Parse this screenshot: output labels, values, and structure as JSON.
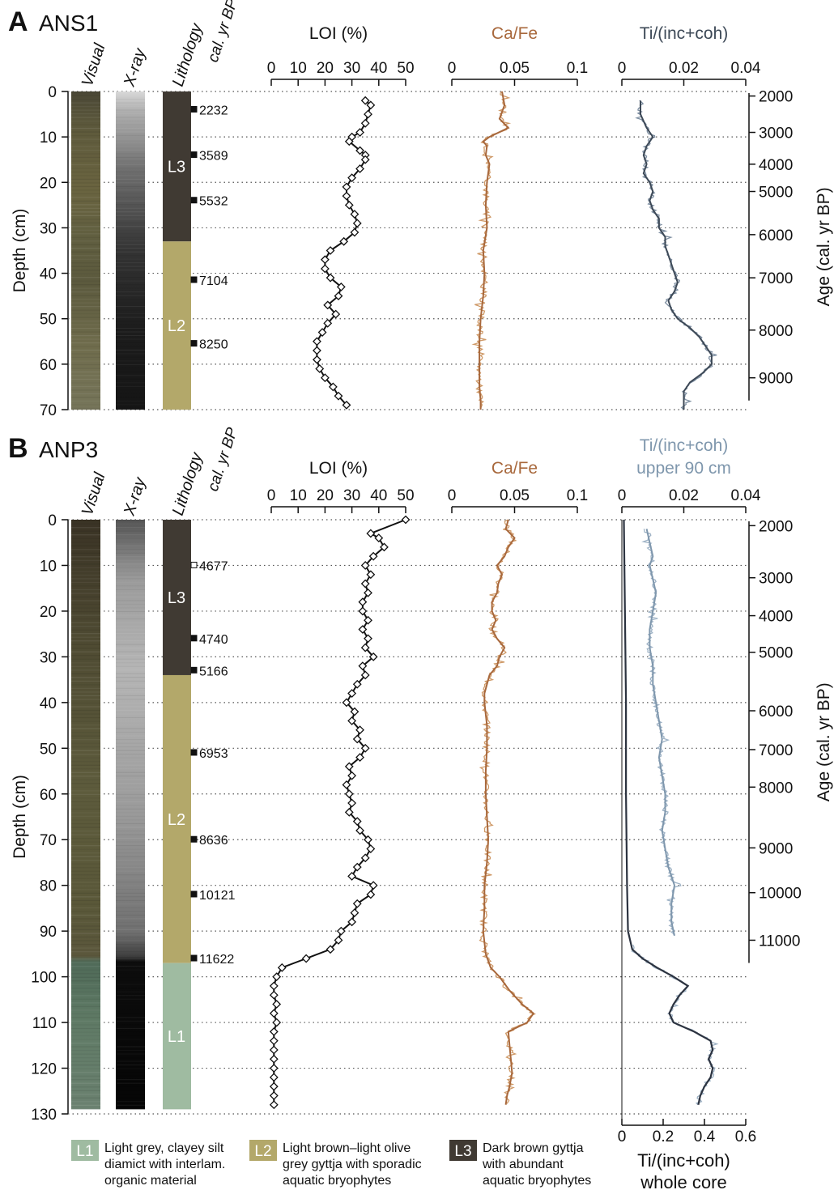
{
  "colors": {
    "L1": "#9fbba1",
    "L2": "#b3a86a",
    "L3": "#403a33",
    "loi": "#111111",
    "cafe": "#a8683c",
    "cafe_raw": "#cf9a68",
    "ti_ans1": "#3d4957",
    "ti_ans1_raw": "#7d8ea1",
    "ti_anp3": "#7f97ad",
    "ti_anp3_raw": "#9fb3c6",
    "ti_whole": "#2c3340",
    "grid": "#555555"
  },
  "legend": [
    {
      "code": "L1",
      "text": [
        "Light grey, clayey silt",
        "diamict with interlam.",
        "organic material"
      ]
    },
    {
      "code": "L2",
      "text": [
        "Light brown–light olive",
        "grey gyttja with sporadic",
        "aquatic bryophytes"
      ]
    },
    {
      "code": "L3",
      "text": [
        "Dark brown gyttja",
        "with abundant",
        "aquatic bryophytes"
      ]
    }
  ],
  "chart_data": [
    {
      "type": "line",
      "panel": "A",
      "core": "ANS1",
      "strip_labels": [
        "Visual",
        "X-ray",
        "Lithology"
      ],
      "ages_label": "cal. yr BP",
      "ylabel": "Depth (cm)",
      "depth_ticks": [
        0,
        10,
        20,
        30,
        40,
        50,
        60,
        70
      ],
      "ylim": [
        0,
        70
      ],
      "lithology": [
        {
          "unit": "L3",
          "from": 0,
          "to": 33
        },
        {
          "unit": "L2",
          "from": 33,
          "to": 70
        }
      ],
      "dates": [
        {
          "depth": 4,
          "age": "2232",
          "filled": true
        },
        {
          "depth": 14,
          "age": "3589",
          "filled": true
        },
        {
          "depth": 24,
          "age": "5532",
          "filled": true
        },
        {
          "depth": 41.5,
          "age": "7104",
          "filled": true
        },
        {
          "depth": 55.5,
          "age": "8250",
          "filled": true
        }
      ],
      "loi": {
        "xlabel": "LOI (%)",
        "ticks": [
          0,
          10,
          20,
          30,
          40,
          50
        ],
        "xlim": [
          0,
          50
        ],
        "depth": [
          2,
          3,
          5,
          7,
          9,
          10,
          11,
          13,
          14,
          15,
          17,
          19,
          21,
          23,
          25,
          27,
          29,
          31,
          33,
          35,
          37,
          39,
          41,
          43,
          45,
          47,
          49,
          51,
          53,
          55,
          57,
          59,
          61,
          63,
          65,
          67,
          69
        ],
        "values": [
          35,
          37,
          36,
          35,
          33,
          30,
          29,
          33,
          35,
          35,
          33,
          30,
          28,
          28,
          29,
          31,
          32,
          31,
          27,
          22,
          20,
          20,
          22,
          26,
          25,
          21,
          24,
          21,
          19,
          17,
          17,
          17,
          18,
          20,
          23,
          25,
          28
        ]
      },
      "cafe": {
        "xlabel": "Ca/Fe",
        "ticks": [
          0,
          0.05,
          0.1
        ],
        "xlim": [
          0,
          0.1
        ],
        "depth": [
          0,
          3,
          6,
          8,
          10,
          11,
          12,
          14,
          16,
          20,
          25,
          30,
          35,
          40,
          45,
          50,
          55,
          60,
          65,
          68,
          70
        ],
        "values": [
          0.04,
          0.042,
          0.038,
          0.045,
          0.03,
          0.025,
          0.028,
          0.027,
          0.03,
          0.028,
          0.027,
          0.028,
          0.025,
          0.026,
          0.025,
          0.023,
          0.022,
          0.022,
          0.022,
          0.023,
          0.023
        ]
      },
      "ti": {
        "xlabel": "Ti/(inc+coh)",
        "ticks": [
          0,
          0.02,
          0.04
        ],
        "xlim": [
          0,
          0.04
        ],
        "depth": [
          2,
          5,
          8,
          10,
          12,
          14,
          16,
          18,
          20,
          22,
          24,
          26,
          28,
          30,
          32,
          34,
          36,
          38,
          40,
          42,
          44,
          46,
          48,
          50,
          52,
          54,
          56,
          58,
          60,
          62,
          64,
          66,
          68,
          70
        ],
        "values": [
          0.006,
          0.006,
          0.008,
          0.01,
          0.008,
          0.007,
          0.008,
          0.007,
          0.009,
          0.01,
          0.009,
          0.01,
          0.012,
          0.012,
          0.014,
          0.014,
          0.015,
          0.016,
          0.017,
          0.018,
          0.017,
          0.015,
          0.016,
          0.018,
          0.022,
          0.025,
          0.027,
          0.029,
          0.029,
          0.026,
          0.022,
          0.02,
          0.02,
          0.02
        ]
      },
      "age_axis": {
        "label": "Age (cal. yr BP)",
        "ticks": [
          {
            "depth": 1,
            "age": 2000
          },
          {
            "depth": 9,
            "age": 3000
          },
          {
            "depth": 16,
            "age": 4000
          },
          {
            "depth": 22,
            "age": 5000
          },
          {
            "depth": 31.5,
            "age": 6000
          },
          {
            "depth": 41,
            "age": 7000
          },
          {
            "depth": 52.5,
            "age": 8000
          },
          {
            "depth": 63,
            "age": 9000
          }
        ]
      }
    },
    {
      "type": "line",
      "panel": "B",
      "core": "ANP3",
      "strip_labels": [
        "Visual",
        "X-ray",
        "Lithology"
      ],
      "ages_label": "cal. yr BP",
      "ylabel": "Depth (cm)",
      "depth_ticks": [
        0,
        10,
        20,
        30,
        40,
        50,
        60,
        70,
        80,
        90,
        100,
        110,
        120,
        130
      ],
      "ylim": [
        0,
        130
      ],
      "lithology": [
        {
          "unit": "L3",
          "from": 0,
          "to": 34
        },
        {
          "unit": "L2",
          "from": 34,
          "to": 97
        },
        {
          "unit": "L1",
          "from": 97,
          "to": 129
        }
      ],
      "dates": [
        {
          "depth": 10,
          "age": "4677",
          "filled": false
        },
        {
          "depth": 26,
          "age": "4740",
          "filled": true
        },
        {
          "depth": 33,
          "age": "5166",
          "filled": true
        },
        {
          "depth": 51,
          "age": "6953",
          "filled": true
        },
        {
          "depth": 70,
          "age": "8636",
          "filled": true
        },
        {
          "depth": 82,
          "age": "10121",
          "filled": true
        },
        {
          "depth": 96,
          "age": "11622",
          "filled": true
        }
      ],
      "loi": {
        "xlabel": "LOI (%)",
        "ticks": [
          0,
          10,
          20,
          30,
          40,
          50
        ],
        "xlim": [
          0,
          50
        ],
        "depth": [
          0,
          3,
          4,
          6,
          8,
          10,
          12,
          14,
          16,
          18,
          20,
          22,
          24,
          26,
          28,
          30,
          32,
          34,
          36,
          38,
          40,
          42,
          44,
          46,
          48,
          50,
          52,
          54,
          56,
          58,
          60,
          62,
          64,
          66,
          68,
          70,
          72,
          74,
          76,
          78,
          80,
          82,
          84,
          86,
          88,
          90,
          92,
          94,
          96,
          98,
          100,
          102,
          104,
          106,
          108,
          110,
          112,
          114,
          116,
          118,
          120,
          122,
          124,
          126,
          128
        ],
        "values": [
          50,
          37,
          40,
          42,
          38,
          35,
          37,
          35,
          36,
          34,
          34,
          36,
          34,
          36,
          35,
          38,
          34,
          35,
          32,
          30,
          28,
          31,
          30,
          33,
          32,
          35,
          33,
          29,
          30,
          28,
          29,
          30,
          29,
          32,
          33,
          36,
          37,
          35,
          32,
          30,
          38,
          37,
          32,
          31,
          30,
          26,
          25,
          22,
          13,
          4,
          2,
          1,
          1,
          2,
          1,
          2,
          1,
          1,
          1,
          1,
          1,
          1,
          1,
          1,
          1
        ]
      },
      "cafe": {
        "xlabel": "Ca/Fe",
        "ticks": [
          0,
          0.05,
          0.1
        ],
        "xlim": [
          0,
          0.1
        ],
        "depth": [
          0,
          2,
          4,
          6,
          8,
          10,
          12,
          14,
          16,
          18,
          20,
          22,
          24,
          26,
          28,
          30,
          32,
          34,
          36,
          38,
          40,
          45,
          50,
          55,
          60,
          65,
          70,
          75,
          80,
          85,
          90,
          95,
          98,
          100,
          103,
          106,
          108,
          110,
          112,
          115,
          118,
          121,
          124,
          126,
          128
        ],
        "values": [
          0.045,
          0.043,
          0.05,
          0.045,
          0.042,
          0.036,
          0.04,
          0.037,
          0.036,
          0.032,
          0.032,
          0.035,
          0.032,
          0.036,
          0.042,
          0.038,
          0.036,
          0.03,
          0.028,
          0.026,
          0.026,
          0.028,
          0.028,
          0.027,
          0.027,
          0.028,
          0.029,
          0.028,
          0.026,
          0.026,
          0.025,
          0.027,
          0.031,
          0.038,
          0.046,
          0.056,
          0.065,
          0.06,
          0.045,
          0.046,
          0.047,
          0.048,
          0.046,
          0.044,
          0.043
        ]
      },
      "ti_upper": {
        "xlabel": [
          "Ti/(inc+coh)",
          "upper 90 cm"
        ],
        "ticks": [
          0,
          0.02,
          0.04
        ],
        "xlim": [
          0,
          0.04
        ],
        "depth": [
          2,
          5,
          8,
          10,
          13,
          16,
          20,
          24,
          28,
          32,
          36,
          40,
          44,
          48,
          52,
          56,
          60,
          64,
          68,
          72,
          76,
          80,
          84,
          88,
          91
        ],
        "values": [
          0.008,
          0.009,
          0.01,
          0.009,
          0.01,
          0.011,
          0.01,
          0.009,
          0.009,
          0.01,
          0.01,
          0.011,
          0.012,
          0.013,
          0.012,
          0.013,
          0.014,
          0.014,
          0.013,
          0.014,
          0.015,
          0.017,
          0.016,
          0.016,
          0.017
        ]
      },
      "ti_whole": {
        "xlabel": [
          "Ti/(inc+coh)",
          "whole core"
        ],
        "ticks": [
          0,
          0.2,
          0.4,
          0.6
        ],
        "xlim": [
          0,
          0.6
        ],
        "depth": [
          0,
          20,
          40,
          60,
          80,
          90,
          94,
          96,
          98,
          100,
          102,
          104,
          106,
          108,
          110,
          112,
          114,
          116,
          118,
          120,
          122,
          124,
          126,
          128
        ],
        "values": [
          0.01,
          0.015,
          0.02,
          0.02,
          0.025,
          0.03,
          0.05,
          0.1,
          0.17,
          0.25,
          0.32,
          0.28,
          0.25,
          0.23,
          0.25,
          0.35,
          0.43,
          0.44,
          0.42,
          0.44,
          0.43,
          0.4,
          0.38,
          0.37
        ]
      },
      "age_axis": {
        "label": "Age (cal. yr BP)",
        "ticks": [
          {
            "depth": 1.3,
            "age": 2000
          },
          {
            "depth": 12.7,
            "age": 3000
          },
          {
            "depth": 21,
            "age": 4000
          },
          {
            "depth": 29,
            "age": 5000
          },
          {
            "depth": 41.8,
            "age": 6000
          },
          {
            "depth": 50.3,
            "age": 7000
          },
          {
            "depth": 58.5,
            "age": 8000
          },
          {
            "depth": 71.8,
            "age": 9000
          },
          {
            "depth": 81.6,
            "age": 10000
          },
          {
            "depth": 92,
            "age": 11000
          }
        ]
      }
    }
  ]
}
